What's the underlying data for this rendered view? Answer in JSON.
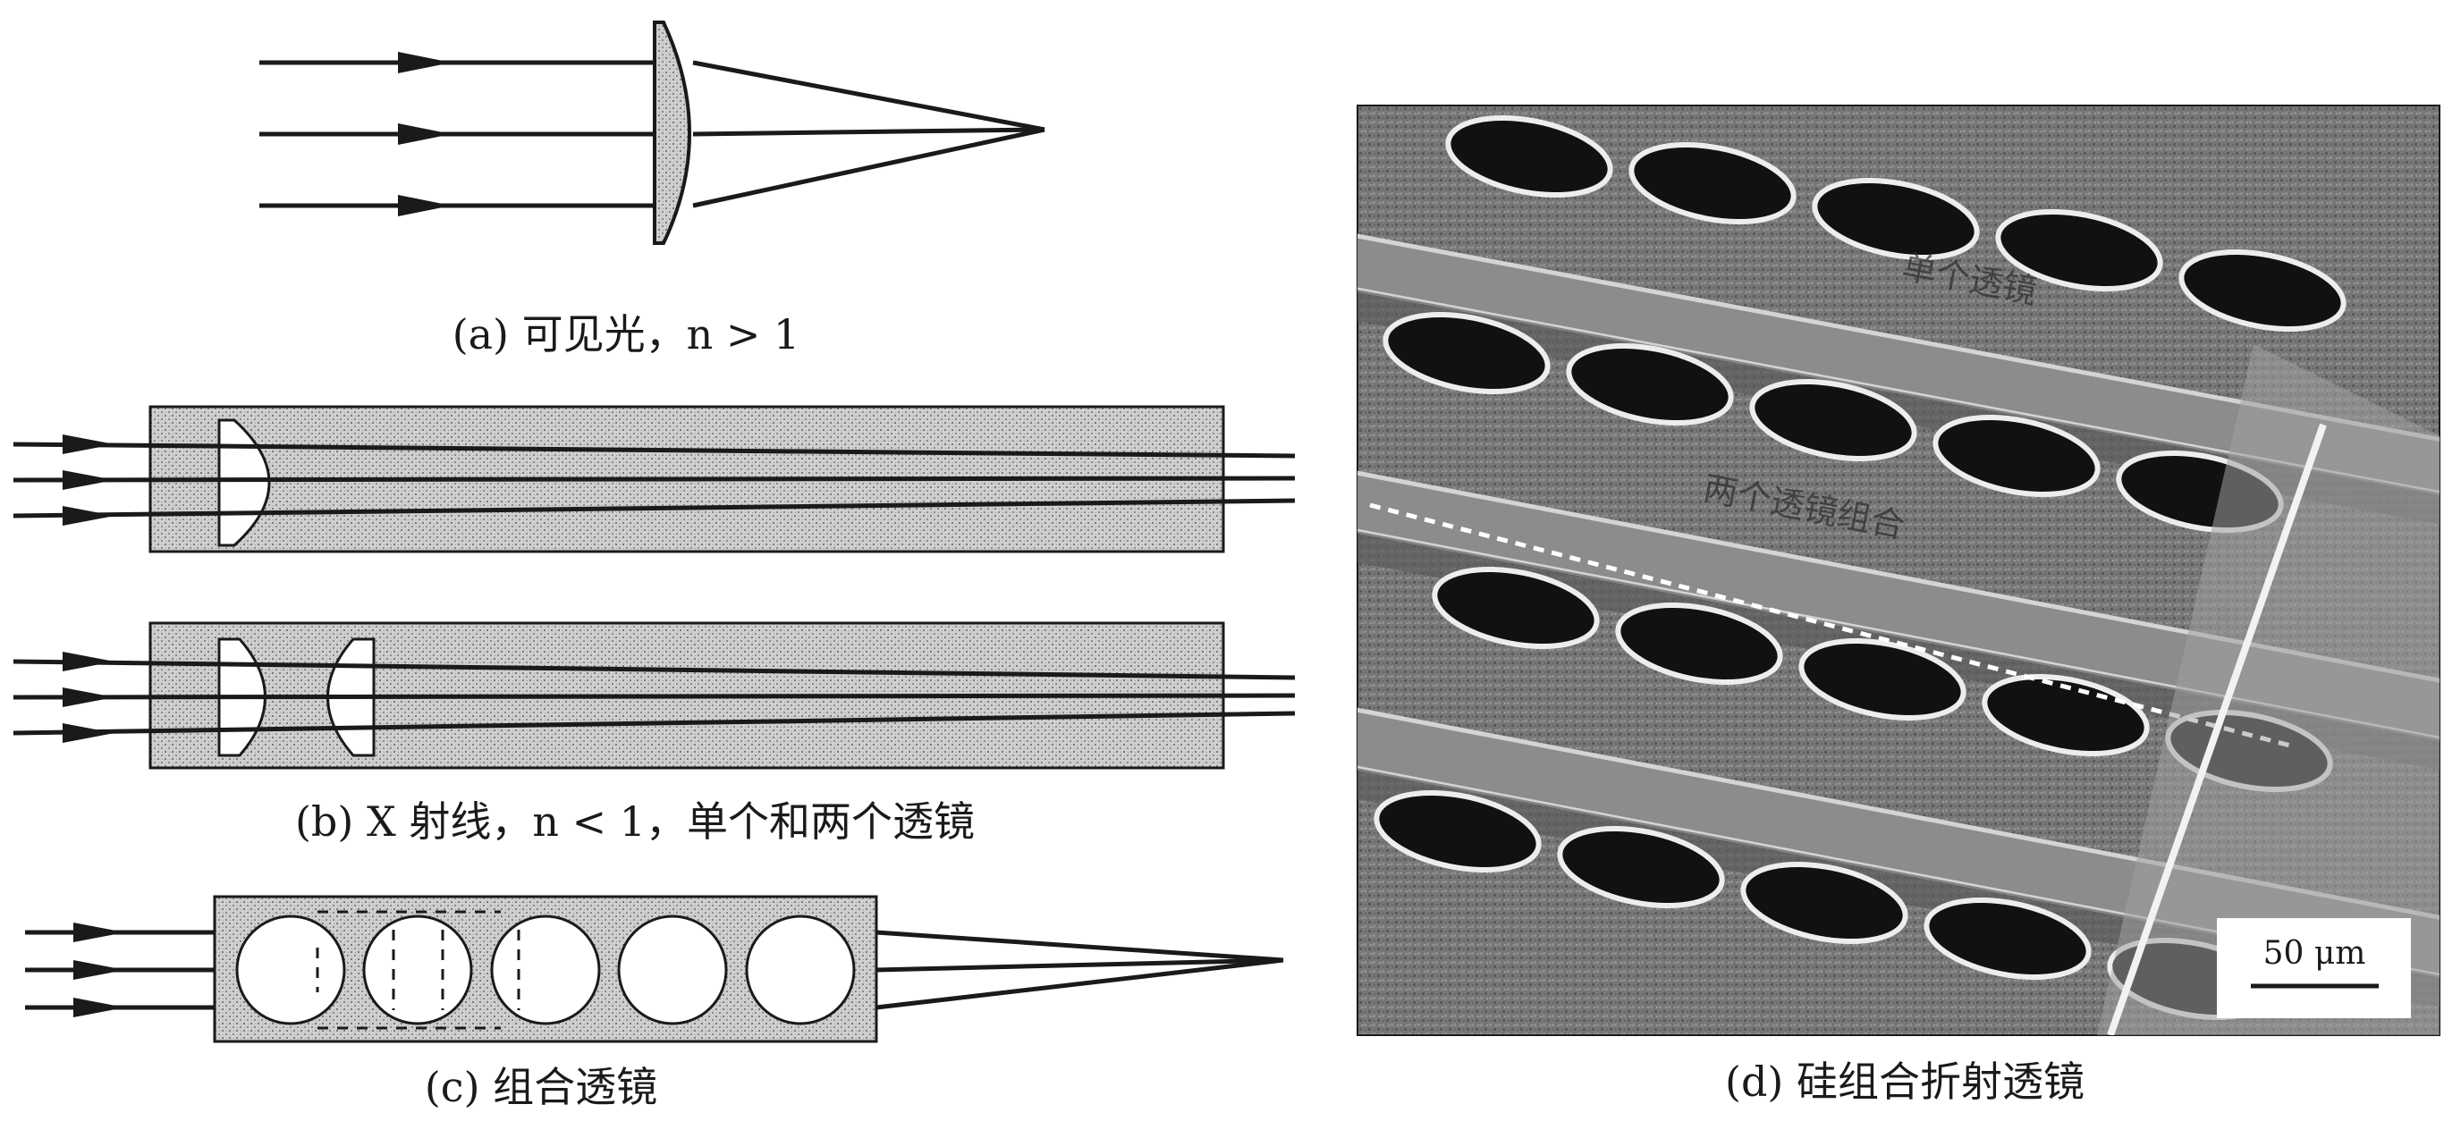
{
  "figure": {
    "panel_a": {
      "caption": "(a) 可见光，n > 1"
    },
    "panel_b": {
      "caption": "(b) X 射线，n < 1，单个和两个透镜"
    },
    "panel_c": {
      "caption": "(c) 组合透镜"
    },
    "panel_d": {
      "caption": "(d) 硅组合折射透镜",
      "label_single": "单个透镜",
      "label_cascade": "两个透镜组合",
      "scale_bar": "50 μm"
    }
  },
  "colors": {
    "ink": "#1a1a1a",
    "lens_fill": "#ffffff",
    "substrate": "#bdbdbd",
    "sem_background": "#6d6d6d"
  }
}
